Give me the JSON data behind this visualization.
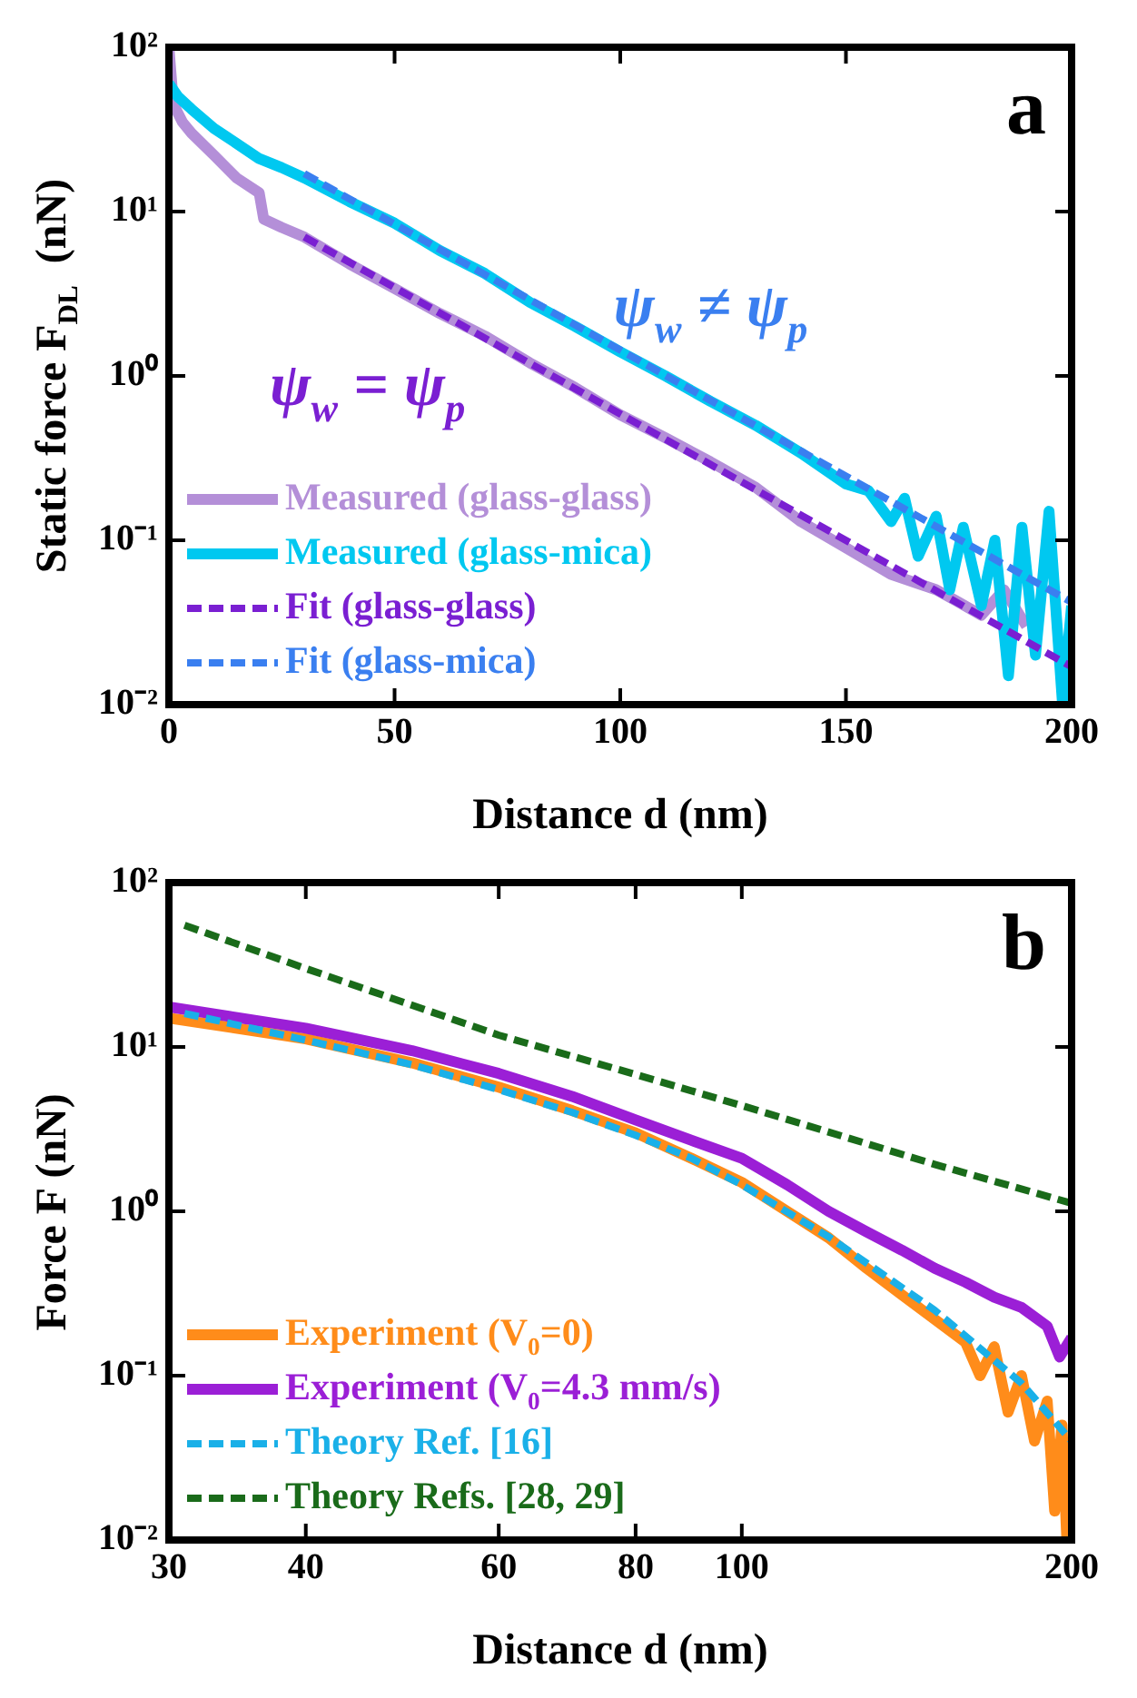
{
  "chart_data": [
    {
      "type": "line",
      "xlabel": "Distance d (nm)",
      "ylabel": "Static force F$_{DL}$  (nN)",
      "log": "y",
      "legend": "bottom left",
      "xlim": [
        0,
        200
      ],
      "xticks": [
        0,
        50,
        100,
        150,
        200
      ],
      "ylim": [
        0.01,
        100
      ],
      "yticks": [
        {
          "value": 0.01,
          "label": "10⁻²"
        },
        {
          "value": 0.1,
          "label": "10⁻¹"
        },
        {
          "value": 1,
          "label": "10⁰"
        },
        {
          "value": 10,
          "label": "10¹"
        },
        {
          "value": 100,
          "label": "10²"
        }
      ],
      "annotations": [
        "a",
        "ψ$_{w}$ ≠ ψ$_{p}$",
        "ψ$_{w}$ = ψ$_{p}$"
      ],
      "series": [
        {
          "name": "Measured (glass-glass)",
          "color": "#b48fd8",
          "line_style": "solid",
          "x": [
            0,
            1,
            3,
            5,
            10,
            15,
            20,
            21,
            25,
            30,
            40,
            50,
            60,
            70,
            80,
            90,
            100,
            110,
            120,
            130,
            140,
            150,
            160,
            170,
            175,
            180,
            185,
            190
          ],
          "values": [
            100,
            45,
            35,
            30,
            22,
            16,
            13,
            9,
            8,
            7,
            4.8,
            3.4,
            2.4,
            1.75,
            1.2,
            0.85,
            0.58,
            0.42,
            0.3,
            0.21,
            0.13,
            0.09,
            0.062,
            0.05,
            0.042,
            0.035,
            0.05,
            0.03
          ]
        },
        {
          "name": "Measured (glass-mica)",
          "color": "#00c8f0",
          "line_style": "solid",
          "x": [
            0,
            2,
            5,
            10,
            15,
            20,
            25,
            30,
            40,
            50,
            60,
            70,
            80,
            90,
            100,
            110,
            120,
            130,
            140,
            150,
            155,
            160,
            163,
            166,
            170,
            173,
            176,
            180,
            183,
            186,
            189,
            192,
            195,
            198,
            200
          ],
          "values": [
            60,
            50,
            42,
            32,
            26,
            21,
            18.5,
            16,
            11.5,
            8.5,
            5.8,
            4.2,
            2.8,
            2,
            1.4,
            1,
            0.7,
            0.5,
            0.34,
            0.22,
            0.2,
            0.13,
            0.18,
            0.08,
            0.14,
            0.05,
            0.12,
            0.04,
            0.1,
            0.015,
            0.12,
            0.02,
            0.15,
            0.01,
            0.04
          ]
        },
        {
          "name": "Fit (glass-glass)",
          "color": "#7a1fd2",
          "line_style": "dashed",
          "x": [
            30,
            200
          ],
          "values": [
            7,
            0.017
          ]
        },
        {
          "name": "Fit (glass-mica)",
          "color": "#3a7ff0",
          "line_style": "dashed",
          "x": [
            30,
            200
          ],
          "values": [
            17,
            0.042
          ]
        }
      ]
    },
    {
      "type": "line",
      "xlabel": "Distance d (nm)",
      "ylabel": "Force F (nN)",
      "log": "xy",
      "legend": "bottom left",
      "xlim": [
        30,
        200
      ],
      "xticks": [
        30,
        40,
        60,
        80,
        100,
        200
      ],
      "ylim": [
        0.01,
        100
      ],
      "yticks": [
        {
          "value": 0.01,
          "label": "10⁻²"
        },
        {
          "value": 0.1,
          "label": "10⁻¹"
        },
        {
          "value": 1,
          "label": "10⁰"
        },
        {
          "value": 10,
          "label": "10¹"
        },
        {
          "value": 100,
          "label": "10²"
        }
      ],
      "annotations": [
        "b"
      ],
      "series": [
        {
          "name": "Experiment (V$_{0}$=0)",
          "color": "#ff8c1a",
          "line_style": "solid",
          "x": [
            30,
            40,
            50,
            60,
            70,
            80,
            90,
            100,
            110,
            120,
            130,
            140,
            150,
            160,
            165,
            170,
            175,
            180,
            185,
            190,
            193,
            196,
            198,
            200
          ],
          "values": [
            15,
            11.2,
            8,
            5.7,
            4.1,
            3,
            2.1,
            1.5,
            1,
            0.69,
            0.45,
            0.31,
            0.22,
            0.16,
            0.1,
            0.15,
            0.06,
            0.1,
            0.04,
            0.07,
            0.015,
            0.05,
            0.01,
            0.03
          ]
        },
        {
          "name": "Experiment (V$_{0}$=4.3 mm/s)",
          "color": "#9b1fd6",
          "line_style": "solid",
          "x": [
            30,
            40,
            50,
            60,
            70,
            80,
            90,
            100,
            110,
            120,
            130,
            140,
            150,
            160,
            170,
            180,
            190,
            195,
            200
          ],
          "values": [
            17.5,
            13,
            9.5,
            6.9,
            5,
            3.6,
            2.7,
            2.1,
            1.45,
            1,
            0.75,
            0.58,
            0.45,
            0.37,
            0.3,
            0.26,
            0.2,
            0.13,
            0.17
          ]
        },
        {
          "name": "Theory Ref. [16]",
          "color": "#1ab0e8",
          "line_style": "dashed",
          "x": [
            31,
            40,
            50,
            60,
            70,
            80,
            90,
            100,
            120,
            150,
            180,
            200
          ],
          "values": [
            16,
            11,
            7.8,
            5.5,
            4,
            2.9,
            2.1,
            1.45,
            0.7,
            0.25,
            0.09,
            0.04
          ]
        },
        {
          "name": "Theory Refs. [28, 29]",
          "color": "#1a6b1a",
          "line_style": "dashed",
          "x": [
            31,
            40,
            60,
            80,
            100,
            150,
            200
          ],
          "values": [
            55,
            30,
            11.8,
            6.8,
            4.4,
            1.93,
            1.12
          ]
        }
      ]
    }
  ]
}
